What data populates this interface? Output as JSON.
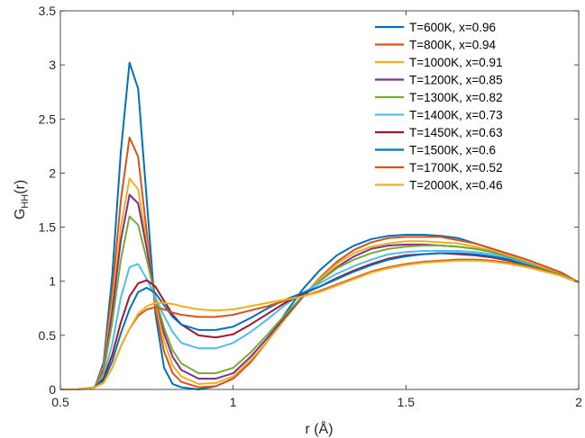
{
  "chart_data": {
    "type": "line",
    "title": "",
    "xlabel": "r (Å)",
    "ylabel_main": "G",
    "ylabel_sub": "HH",
    "ylabel_suffix": "(r)",
    "xlim": [
      0.5,
      2
    ],
    "ylim": [
      0,
      3.5
    ],
    "xticks": [
      0.5,
      1,
      1.5,
      2
    ],
    "xtick_labels": [
      "0.5",
      "1",
      "1.5",
      "2"
    ],
    "yticks": [
      0,
      0.5,
      1,
      1.5,
      2,
      2.5,
      3,
      3.5
    ],
    "ytick_labels": [
      "0",
      "0.5",
      "1",
      "1.5",
      "2",
      "2.5",
      "3",
      "3.5"
    ],
    "grid": false,
    "legend_position": "top-right",
    "x": [
      0.5,
      0.55,
      0.6,
      0.625,
      0.65,
      0.675,
      0.7,
      0.725,
      0.75,
      0.775,
      0.8,
      0.825,
      0.85,
      0.9,
      0.95,
      1.0,
      1.05,
      1.1,
      1.15,
      1.2,
      1.25,
      1.3,
      1.35,
      1.4,
      1.45,
      1.5,
      1.55,
      1.6,
      1.65,
      1.7,
      1.75,
      1.8,
      1.85,
      1.9,
      1.95,
      2.0
    ],
    "series": [
      {
        "name": "T=600K, x=0.96",
        "color": "#0072BD",
        "values": [
          0,
          0,
          0.02,
          0.25,
          1.05,
          2.2,
          3.02,
          2.78,
          1.75,
          0.7,
          0.2,
          0.05,
          0.02,
          0,
          0.03,
          0.1,
          0.25,
          0.45,
          0.7,
          0.92,
          1.1,
          1.24,
          1.33,
          1.39,
          1.42,
          1.43,
          1.43,
          1.42,
          1.4,
          1.35,
          1.3,
          1.25,
          1.2,
          1.14,
          1.08,
          0.99
        ]
      },
      {
        "name": "T=800K, x=0.94",
        "color": "#D95319",
        "values": [
          0,
          0,
          0.02,
          0.22,
          0.9,
          1.75,
          2.33,
          2.15,
          1.45,
          0.75,
          0.35,
          0.15,
          0.07,
          0.02,
          0.03,
          0.1,
          0.25,
          0.45,
          0.65,
          0.85,
          1.03,
          1.18,
          1.29,
          1.36,
          1.4,
          1.41,
          1.41,
          1.41,
          1.38,
          1.35,
          1.3,
          1.25,
          1.2,
          1.14,
          1.08,
          0.99
        ]
      },
      {
        "name": "T=1000K, x=0.91",
        "color": "#EDB120",
        "values": [
          0,
          0,
          0.02,
          0.2,
          0.8,
          1.5,
          1.95,
          1.85,
          1.35,
          0.82,
          0.45,
          0.22,
          0.12,
          0.05,
          0.06,
          0.12,
          0.27,
          0.45,
          0.65,
          0.85,
          1.02,
          1.16,
          1.26,
          1.32,
          1.35,
          1.37,
          1.37,
          1.36,
          1.35,
          1.32,
          1.28,
          1.23,
          1.18,
          1.12,
          1.06,
          0.99
        ]
      },
      {
        "name": "T=1200K, x=0.85",
        "color": "#7E2F8E",
        "values": [
          0,
          0,
          0.02,
          0.18,
          0.72,
          1.38,
          1.8,
          1.72,
          1.3,
          0.85,
          0.52,
          0.3,
          0.18,
          0.1,
          0.1,
          0.15,
          0.3,
          0.48,
          0.67,
          0.85,
          1.0,
          1.13,
          1.23,
          1.3,
          1.33,
          1.34,
          1.34,
          1.33,
          1.32,
          1.3,
          1.27,
          1.22,
          1.17,
          1.11,
          1.06,
          0.99
        ]
      },
      {
        "name": "T=1300K, x=0.82",
        "color": "#77AC30",
        "values": [
          0,
          0,
          0.02,
          0.16,
          0.62,
          1.2,
          1.6,
          1.52,
          1.2,
          0.85,
          0.57,
          0.36,
          0.24,
          0.15,
          0.15,
          0.2,
          0.34,
          0.51,
          0.69,
          0.86,
          1.0,
          1.12,
          1.2,
          1.26,
          1.3,
          1.32,
          1.33,
          1.33,
          1.32,
          1.3,
          1.27,
          1.22,
          1.17,
          1.11,
          1.06,
          0.99
        ]
      },
      {
        "name": "T=1400K, x=0.73",
        "color": "#4DBEEE",
        "values": [
          0,
          0,
          0.02,
          0.12,
          0.42,
          0.85,
          1.13,
          1.16,
          1.02,
          0.85,
          0.68,
          0.53,
          0.43,
          0.38,
          0.38,
          0.43,
          0.53,
          0.65,
          0.78,
          0.89,
          0.98,
          1.07,
          1.14,
          1.2,
          1.25,
          1.27,
          1.28,
          1.28,
          1.28,
          1.27,
          1.25,
          1.21,
          1.16,
          1.1,
          1.05,
          0.99
        ]
      },
      {
        "name": "T=1450K, x=0.63",
        "color": "#A2142F",
        "values": [
          0,
          0,
          0.02,
          0.1,
          0.32,
          0.62,
          0.86,
          0.98,
          1.01,
          0.95,
          0.82,
          0.69,
          0.6,
          0.5,
          0.48,
          0.51,
          0.6,
          0.7,
          0.8,
          0.88,
          0.95,
          1.03,
          1.1,
          1.16,
          1.21,
          1.24,
          1.25,
          1.26,
          1.25,
          1.24,
          1.22,
          1.19,
          1.15,
          1.1,
          1.05,
          0.99
        ]
      },
      {
        "name": "T=1500K, x=0.6",
        "color": "#0072BD",
        "values": [
          0,
          0,
          0.02,
          0.08,
          0.26,
          0.52,
          0.74,
          0.9,
          0.94,
          0.89,
          0.78,
          0.67,
          0.6,
          0.55,
          0.55,
          0.58,
          0.66,
          0.75,
          0.83,
          0.89,
          0.95,
          1.02,
          1.09,
          1.15,
          1.2,
          1.23,
          1.25,
          1.26,
          1.26,
          1.25,
          1.23,
          1.2,
          1.15,
          1.1,
          1.05,
          0.99
        ]
      },
      {
        "name": "T=1700K, x=0.52",
        "color": "#D95319",
        "values": [
          0,
          0,
          0.02,
          0.06,
          0.2,
          0.4,
          0.56,
          0.68,
          0.74,
          0.76,
          0.74,
          0.71,
          0.69,
          0.67,
          0.67,
          0.69,
          0.73,
          0.77,
          0.82,
          0.86,
          0.91,
          0.97,
          1.03,
          1.09,
          1.13,
          1.16,
          1.18,
          1.19,
          1.2,
          1.2,
          1.19,
          1.17,
          1.14,
          1.1,
          1.05,
          0.99
        ]
      },
      {
        "name": "T=2000K, x=0.46",
        "color": "#EDB120",
        "values": [
          0,
          0,
          0.02,
          0.06,
          0.2,
          0.4,
          0.56,
          0.7,
          0.77,
          0.8,
          0.8,
          0.79,
          0.77,
          0.74,
          0.73,
          0.74,
          0.77,
          0.8,
          0.83,
          0.86,
          0.9,
          0.96,
          1.02,
          1.08,
          1.12,
          1.15,
          1.17,
          1.18,
          1.19,
          1.19,
          1.18,
          1.16,
          1.13,
          1.09,
          1.05,
          0.99
        ]
      }
    ]
  }
}
